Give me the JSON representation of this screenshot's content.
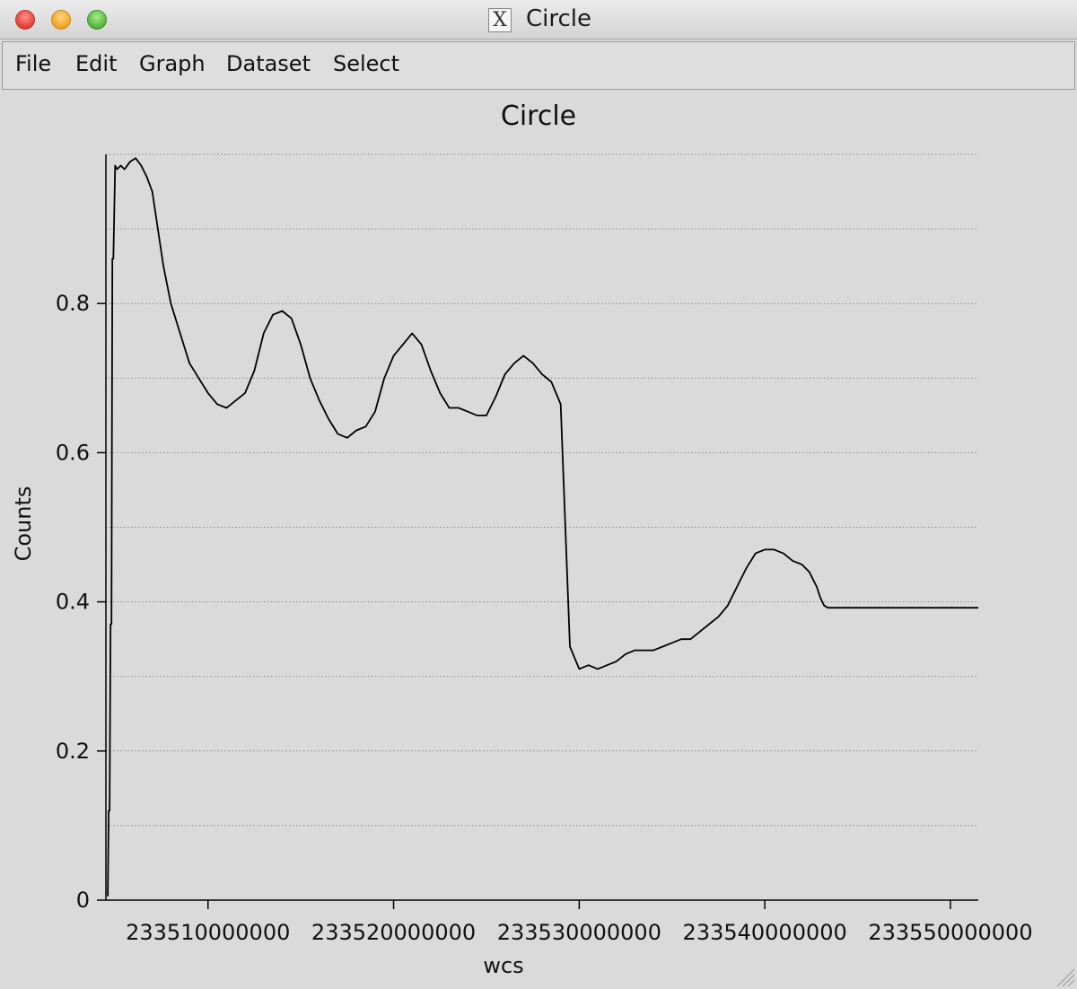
{
  "window": {
    "title": "Circle",
    "icon": "x11-icon",
    "icon_glyph": "X"
  },
  "menubar": {
    "items": [
      "File",
      "Edit",
      "Graph",
      "Dataset",
      "Select"
    ]
  },
  "chart_data": {
    "type": "line",
    "title": "Circle",
    "xlabel": "wcs",
    "ylabel": "Counts",
    "xlim": [
      233504500000,
      233551500000
    ],
    "ylim": [
      0,
      1.0
    ],
    "xticks": [
      233510000000,
      233520000000,
      233530000000,
      233540000000,
      233550000000
    ],
    "xtick_labels": [
      "233510000000",
      "233520000000",
      "233530000000",
      "233540000000",
      "233550000000"
    ],
    "yticks": [
      0,
      0.2,
      0.4,
      0.6,
      0.8
    ],
    "ytick_labels": [
      "0",
      "0.2",
      "0.4",
      "0.6",
      "0.8"
    ],
    "grid": true,
    "series": [
      {
        "color": "#000000",
        "x": [
          233504600000,
          233504650000,
          233504700000,
          233504750000,
          233504800000,
          233504850000,
          233504900000,
          233505000000,
          233505100000,
          233505300000,
          233505500000,
          233505800000,
          233506100000,
          233506400000,
          233506700000,
          233507000000,
          233507300000,
          233507600000,
          233508000000,
          233508500000,
          233509000000,
          233509500000,
          233510000000,
          233510500000,
          233511000000,
          233511500000,
          233512000000,
          233512500000,
          233513000000,
          233513500000,
          233514000000,
          233514500000,
          233515000000,
          233515500000,
          233516000000,
          233516500000,
          233517000000,
          233517500000,
          233518000000,
          233518500000,
          233519000000,
          233519500000,
          233520000000,
          233520500000,
          233521000000,
          233521500000,
          233522000000,
          233522500000,
          233523000000,
          233523500000,
          233524000000,
          233524500000,
          233525000000,
          233525500000,
          233526000000,
          233526500000,
          233527000000,
          233527500000,
          233528000000,
          233528500000,
          233529000000,
          233529500000,
          233530000000,
          233530500000,
          233531000000,
          233531500000,
          233532000000,
          233532500000,
          233533000000,
          233533500000,
          233534000000,
          233534500000,
          233535000000,
          233535500000,
          233536000000,
          233536500000,
          233537000000,
          233537500000,
          233538000000,
          233538500000,
          233539000000,
          233539500000,
          233540000000,
          233540500000,
          233541000000,
          233541500000,
          233542000000,
          233542200000,
          233542400000,
          233542600000,
          233542800000,
          233543000000,
          233543200000,
          233543400000,
          233544000000,
          233544500000,
          233545000000,
          233545500000,
          233546000000,
          233546500000,
          233547000000,
          233547500000,
          233548000000,
          233548500000,
          233549000000,
          233549500000,
          233550000000,
          233550500000,
          233551000000,
          233551500000
        ],
        "y": [
          0.005,
          0.12,
          0.12,
          0.37,
          0.37,
          0.86,
          0.86,
          0.985,
          0.98,
          0.985,
          0.98,
          0.99,
          0.995,
          0.985,
          0.97,
          0.95,
          0.9,
          0.85,
          0.8,
          0.76,
          0.72,
          0.7,
          0.68,
          0.665,
          0.66,
          0.67,
          0.68,
          0.71,
          0.76,
          0.785,
          0.79,
          0.78,
          0.745,
          0.7,
          0.67,
          0.645,
          0.625,
          0.62,
          0.63,
          0.635,
          0.655,
          0.7,
          0.73,
          0.745,
          0.76,
          0.745,
          0.71,
          0.68,
          0.66,
          0.66,
          0.655,
          0.65,
          0.65,
          0.675,
          0.705,
          0.72,
          0.73,
          0.72,
          0.705,
          0.695,
          0.665,
          0.34,
          0.31,
          0.315,
          0.31,
          0.315,
          0.32,
          0.33,
          0.335,
          0.335,
          0.335,
          0.34,
          0.345,
          0.35,
          0.35,
          0.36,
          0.37,
          0.38,
          0.395,
          0.42,
          0.445,
          0.465,
          0.47,
          0.47,
          0.465,
          0.455,
          0.45,
          0.445,
          0.44,
          0.43,
          0.42,
          0.405,
          0.395,
          0.392,
          0.392,
          0.392,
          0.392,
          0.392,
          0.392,
          0.392,
          0.392,
          0.392,
          0.392,
          0.392,
          0.392,
          0.392,
          0.392,
          0.392,
          0.392,
          0.392
        ]
      }
    ]
  }
}
